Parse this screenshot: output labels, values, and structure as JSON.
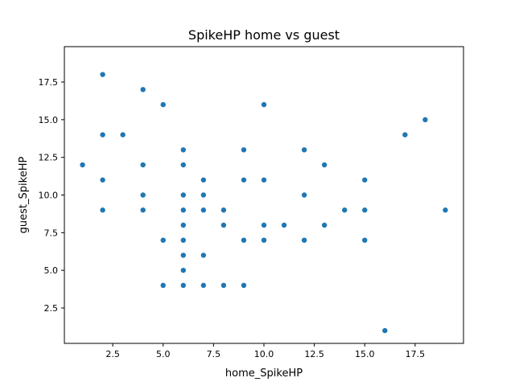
{
  "chart_data": {
    "type": "scatter",
    "title": "SpikeHP home vs guest",
    "xlabel": "home_SpikeHP",
    "ylabel": "guest_SpikeHP",
    "xlim": [
      0.1,
      19.9
    ],
    "ylim": [
      0.15,
      19.85
    ],
    "x_ticks": [
      2.5,
      5.0,
      7.5,
      10.0,
      12.5,
      15.0,
      17.5
    ],
    "x_tick_labels": [
      "2.5",
      "5.0",
      "7.5",
      "10.0",
      "12.5",
      "15.0",
      "17.5"
    ],
    "y_ticks": [
      2.5,
      5.0,
      7.5,
      10.0,
      12.5,
      15.0,
      17.5
    ],
    "y_tick_labels": [
      "2.5",
      "5.0",
      "7.5",
      "10.0",
      "12.5",
      "15.0",
      "17.5"
    ],
    "grid": false,
    "legend": "none",
    "marker_color": "#1f77b4",
    "points": [
      [
        1,
        12
      ],
      [
        2,
        18
      ],
      [
        2,
        14
      ],
      [
        2,
        11
      ],
      [
        2,
        9
      ],
      [
        3,
        14
      ],
      [
        4,
        17
      ],
      [
        4,
        12
      ],
      [
        4,
        10
      ],
      [
        4,
        9
      ],
      [
        5,
        16
      ],
      [
        5,
        7
      ],
      [
        5,
        4
      ],
      [
        6,
        13
      ],
      [
        6,
        12
      ],
      [
        6,
        10
      ],
      [
        6,
        9
      ],
      [
        6,
        8
      ],
      [
        6,
        7
      ],
      [
        6,
        6
      ],
      [
        6,
        5
      ],
      [
        6,
        4
      ],
      [
        7,
        11
      ],
      [
        7,
        10
      ],
      [
        7,
        9
      ],
      [
        7,
        6
      ],
      [
        7,
        4
      ],
      [
        8,
        9
      ],
      [
        8,
        8
      ],
      [
        8,
        4
      ],
      [
        9,
        13
      ],
      [
        9,
        11
      ],
      [
        9,
        7
      ],
      [
        9,
        4
      ],
      [
        10,
        16
      ],
      [
        10,
        11
      ],
      [
        10,
        8
      ],
      [
        10,
        7
      ],
      [
        11,
        8
      ],
      [
        12,
        13
      ],
      [
        12,
        10
      ],
      [
        12,
        7
      ],
      [
        13,
        12
      ],
      [
        13,
        8
      ],
      [
        14,
        9
      ],
      [
        15,
        11
      ],
      [
        15,
        9
      ],
      [
        15,
        7
      ],
      [
        16,
        1
      ],
      [
        17,
        14
      ],
      [
        18,
        15
      ],
      [
        19,
        9
      ]
    ]
  }
}
